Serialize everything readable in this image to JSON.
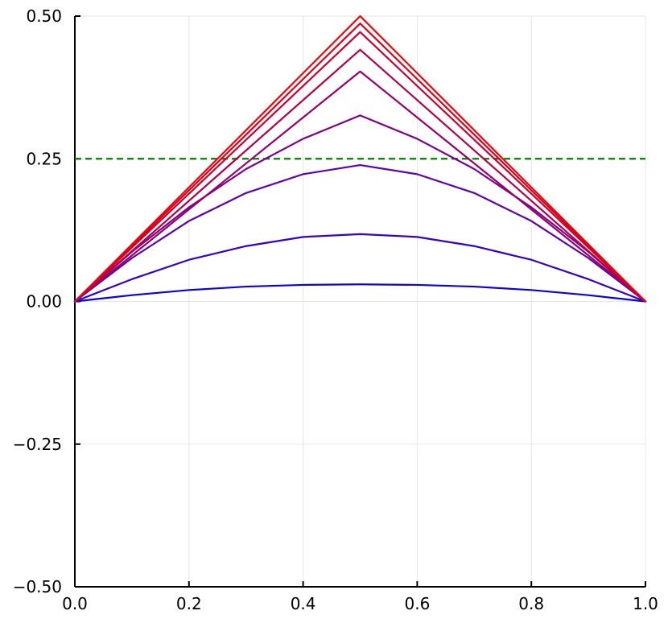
{
  "chart_data": {
    "type": "line",
    "title": "",
    "xlabel": "",
    "ylabel": "",
    "xlim": [
      0.0,
      1.0
    ],
    "ylim": [
      -0.5,
      0.5
    ],
    "x_ticks": [
      "0.0",
      "0.2",
      "0.4",
      "0.6",
      "0.8",
      "1.0"
    ],
    "x_tick_values": [
      0.0,
      0.2,
      0.4,
      0.6,
      0.8,
      1.0
    ],
    "y_ticks": [
      "−0.50",
      "−0.25",
      "0.00",
      "0.25",
      "0.50"
    ],
    "y_tick_values": [
      -0.5,
      -0.25,
      0.0,
      0.25,
      0.5
    ],
    "grid": true,
    "legend": "none",
    "series": [
      {
        "color": "#e8000b",
        "x": [
          0.0,
          0.5,
          1.0
        ],
        "y": [
          0.0,
          0.5,
          0.0
        ]
      },
      {
        "color": "#d8001b",
        "x": [
          0.0,
          0.5,
          1.0
        ],
        "y": [
          0.0,
          0.487,
          0.0
        ]
      },
      {
        "color": "#c60030",
        "x": [
          0.0,
          0.5,
          1.0
        ],
        "y": [
          0.0,
          0.472,
          0.0
        ]
      },
      {
        "color": "#b00048",
        "x": [
          0.0,
          0.5,
          1.0
        ],
        "y": [
          0.0,
          0.441,
          0.0
        ]
      },
      {
        "color": "#96006a",
        "x": [
          0.0,
          0.5,
          1.0
        ],
        "y": [
          0.0,
          0.403,
          0.0
        ]
      },
      {
        "color": "#7a0090",
        "x": [
          0.0,
          0.1,
          0.2,
          0.3,
          0.4,
          0.5,
          0.6,
          0.7,
          0.8,
          0.9,
          1.0
        ],
        "y": [
          0.0,
          0.087,
          0.165,
          0.232,
          0.285,
          0.326,
          0.285,
          0.232,
          0.165,
          0.087,
          0.0
        ]
      },
      {
        "color": "#5a00b0",
        "x": [
          0.0,
          0.1,
          0.2,
          0.3,
          0.4,
          0.5,
          0.6,
          0.7,
          0.8,
          0.9,
          1.0
        ],
        "y": [
          0.0,
          0.076,
          0.141,
          0.19,
          0.223,
          0.239,
          0.223,
          0.19,
          0.141,
          0.076,
          0.0
        ]
      },
      {
        "color": "#3300cc",
        "x": [
          0.0,
          0.1,
          0.2,
          0.3,
          0.4,
          0.5,
          0.6,
          0.7,
          0.8,
          0.9,
          1.0
        ],
        "y": [
          0.0,
          0.039,
          0.073,
          0.097,
          0.113,
          0.118,
          0.113,
          0.097,
          0.073,
          0.039,
          0.0
        ]
      },
      {
        "color": "#0a00e0",
        "x": [
          0.0,
          0.1,
          0.2,
          0.3,
          0.4,
          0.5,
          0.6,
          0.7,
          0.8,
          0.9,
          1.0
        ],
        "y": [
          0.0,
          0.011,
          0.02,
          0.026,
          0.029,
          0.03,
          0.029,
          0.026,
          0.02,
          0.011,
          0.0
        ]
      }
    ],
    "reference_lines": [
      {
        "orientation": "horizontal",
        "y": 0.25,
        "color": "#008000",
        "style": "dashed"
      }
    ]
  }
}
